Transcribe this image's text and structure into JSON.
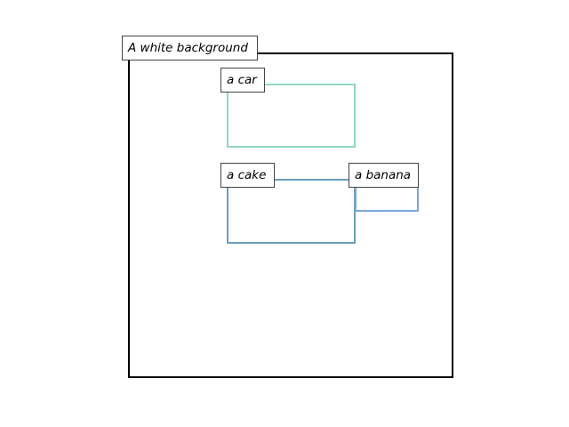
{
  "background_label": "A white background",
  "regions": [
    {
      "label": "a car",
      "color": "#8fd9c0"
    },
    {
      "label": "a cake",
      "color": "#6a9fbd"
    },
    {
      "label": "a banana",
      "color": "#7aa6dc"
    }
  ]
}
